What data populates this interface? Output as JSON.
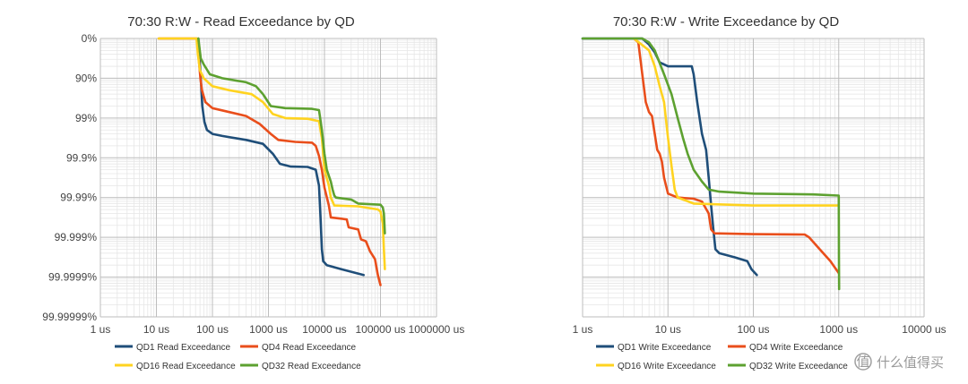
{
  "watermark": "什么值得买",
  "chart_data": [
    {
      "type": "line",
      "title": "70:30 R:W - Read Exceedance by QD",
      "xscale": "log",
      "yscale": "exceedance-log",
      "xlim": [
        1,
        1000000
      ],
      "ylim_nines": [
        0,
        7
      ],
      "x_tick_labels": [
        "1 us",
        "10 us",
        "100 us",
        "1000 us",
        "10000 us",
        "100000 us",
        "1000000 us"
      ],
      "y_tick_labels": [
        "0%",
        "90%",
        "99%",
        "99.9%",
        "99.99%",
        "99.999%",
        "99.9999%",
        "99.99999%"
      ],
      "grid": true,
      "legend_position": "bottom",
      "series": [
        {
          "name": "QD1 Read Exceedance",
          "color": "#1F4E79",
          "points": [
            [
              56,
              0
            ],
            [
              59,
              0.5
            ],
            [
              63,
              1.2
            ],
            [
              66,
              1.7
            ],
            [
              72,
              2.1
            ],
            [
              80,
              2.3
            ],
            [
              100,
              2.4
            ],
            [
              150,
              2.45
            ],
            [
              400,
              2.55
            ],
            [
              800,
              2.65
            ],
            [
              1200,
              2.9
            ],
            [
              1600,
              3.15
            ],
            [
              2500,
              3.22
            ],
            [
              5000,
              3.23
            ],
            [
              7000,
              3.3
            ],
            [
              8000,
              3.7
            ],
            [
              8500,
              4.5
            ],
            [
              9000,
              5.3
            ],
            [
              9500,
              5.6
            ],
            [
              11000,
              5.7
            ],
            [
              20000,
              5.8
            ],
            [
              50000,
              5.95
            ]
          ]
        },
        {
          "name": "QD4 Read Exceedance",
          "color": "#E94E1B",
          "points": [
            [
              11,
              0
            ],
            [
              12,
              0
            ],
            [
              53,
              0
            ],
            [
              57,
              0.5
            ],
            [
              61,
              1.0
            ],
            [
              65,
              1.3
            ],
            [
              75,
              1.6
            ],
            [
              100,
              1.75
            ],
            [
              200,
              1.85
            ],
            [
              400,
              1.95
            ],
            [
              700,
              2.15
            ],
            [
              1100,
              2.4
            ],
            [
              1500,
              2.55
            ],
            [
              3000,
              2.6
            ],
            [
              6000,
              2.62
            ],
            [
              7000,
              2.7
            ],
            [
              8000,
              2.95
            ],
            [
              9000,
              3.3
            ],
            [
              10000,
              3.75
            ],
            [
              12000,
              4.2
            ],
            [
              13000,
              4.5
            ],
            [
              20000,
              4.53
            ],
            [
              25000,
              4.55
            ],
            [
              27000,
              4.75
            ],
            [
              40000,
              4.8
            ],
            [
              45000,
              5.05
            ],
            [
              55000,
              5.1
            ],
            [
              65000,
              5.35
            ],
            [
              80000,
              5.55
            ],
            [
              90000,
              5.95
            ],
            [
              100000,
              6.2
            ]
          ]
        },
        {
          "name": "QD16 Read Exceedance",
          "color": "#FFD320",
          "points": [
            [
              11,
              0
            ],
            [
              52,
              0
            ],
            [
              55,
              0.4
            ],
            [
              60,
              0.8
            ],
            [
              70,
              1.0
            ],
            [
              100,
              1.2
            ],
            [
              200,
              1.3
            ],
            [
              500,
              1.4
            ],
            [
              800,
              1.6
            ],
            [
              1200,
              1.9
            ],
            [
              2000,
              2.0
            ],
            [
              5000,
              2.02
            ],
            [
              8000,
              2.08
            ],
            [
              9000,
              2.5
            ],
            [
              10000,
              3.3
            ],
            [
              12000,
              3.7
            ],
            [
              13000,
              4.0
            ],
            [
              15000,
              4.2
            ],
            [
              40000,
              4.22
            ],
            [
              90000,
              4.3
            ],
            [
              100000,
              4.35
            ],
            [
              110000,
              4.65
            ],
            [
              115000,
              5.3
            ],
            [
              120000,
              5.8
            ]
          ]
        },
        {
          "name": "QD32 Read Exceedance",
          "color": "#5DA130",
          "points": [
            [
              56,
              0
            ],
            [
              62,
              0.5
            ],
            [
              70,
              0.65
            ],
            [
              90,
              0.9
            ],
            [
              150,
              1.0
            ],
            [
              400,
              1.1
            ],
            [
              600,
              1.2
            ],
            [
              800,
              1.4
            ],
            [
              1100,
              1.7
            ],
            [
              2000,
              1.75
            ],
            [
              6000,
              1.77
            ],
            [
              8000,
              1.8
            ],
            [
              9000,
              2.3
            ],
            [
              10000,
              2.9
            ],
            [
              11000,
              3.3
            ],
            [
              13000,
              3.6
            ],
            [
              14000,
              3.8
            ],
            [
              15000,
              3.95
            ],
            [
              16000,
              4.0
            ],
            [
              30000,
              4.05
            ],
            [
              40000,
              4.15
            ],
            [
              100000,
              4.18
            ],
            [
              110000,
              4.25
            ],
            [
              115000,
              4.4
            ],
            [
              120000,
              4.9
            ]
          ]
        }
      ]
    },
    {
      "type": "line",
      "title": "70:30 R:W - Write Exceedance by QD",
      "xscale": "log",
      "yscale": "exceedance-log",
      "xlim": [
        1,
        10000
      ],
      "ylim_nines": [
        0,
        7
      ],
      "x_tick_labels": [
        "1 us",
        "10 us",
        "100 us",
        "1000 us",
        "10000 us"
      ],
      "y_tick_labels": [],
      "grid": true,
      "legend_position": "bottom",
      "series": [
        {
          "name": "QD1 Write Exceedance",
          "color": "#1F4E79",
          "points": [
            [
              1,
              0
            ],
            [
              5,
              0
            ],
            [
              6,
              0.15
            ],
            [
              7,
              0.35
            ],
            [
              8,
              0.6
            ],
            [
              10,
              0.7
            ],
            [
              19,
              0.7
            ],
            [
              20,
              0.9
            ],
            [
              22,
              1.6
            ],
            [
              25,
              2.4
            ],
            [
              28,
              2.8
            ],
            [
              30,
              3.5
            ],
            [
              32,
              4.2
            ],
            [
              34,
              4.8
            ],
            [
              36,
              5.3
            ],
            [
              40,
              5.4
            ],
            [
              60,
              5.5
            ],
            [
              85,
              5.6
            ],
            [
              95,
              5.8
            ],
            [
              110,
              5.95
            ]
          ]
        },
        {
          "name": "QD4 Write Exceedance",
          "color": "#E94E1B",
          "points": [
            [
              4,
              0
            ],
            [
              4.5,
              0.1
            ],
            [
              5,
              0.9
            ],
            [
              5.5,
              1.6
            ],
            [
              6,
              1.85
            ],
            [
              6.5,
              1.95
            ],
            [
              7,
              2.4
            ],
            [
              7.5,
              2.8
            ],
            [
              8,
              2.9
            ],
            [
              8.5,
              3.1
            ],
            [
              9,
              3.5
            ],
            [
              10,
              3.9
            ],
            [
              13,
              4.0
            ],
            [
              20,
              4.03
            ],
            [
              25,
              4.1
            ],
            [
              30,
              4.4
            ],
            [
              32,
              4.8
            ],
            [
              35,
              4.9
            ],
            [
              100,
              4.92
            ],
            [
              400,
              4.93
            ],
            [
              450,
              5.0
            ],
            [
              600,
              5.3
            ],
            [
              800,
              5.6
            ],
            [
              1000,
              5.9
            ]
          ]
        },
        {
          "name": "QD16 Write Exceedance",
          "color": "#FFD320",
          "points": [
            [
              4,
              0
            ],
            [
              6,
              0.3
            ],
            [
              7,
              0.7
            ],
            [
              8,
              1.2
            ],
            [
              9,
              1.6
            ],
            [
              10,
              2.5
            ],
            [
              11,
              3.2
            ],
            [
              12,
              3.8
            ],
            [
              13,
              4.0
            ],
            [
              15,
              4.05
            ],
            [
              20,
              4.15
            ],
            [
              100,
              4.2
            ],
            [
              500,
              4.2
            ],
            [
              1000,
              4.2
            ]
          ]
        },
        {
          "name": "QD32 Write Exceedance",
          "color": "#5DA130",
          "points": [
            [
              1,
              0
            ],
            [
              5,
              0
            ],
            [
              6,
              0.1
            ],
            [
              7,
              0.3
            ],
            [
              9,
              0.9
            ],
            [
              11,
              1.4
            ],
            [
              13,
              2.0
            ],
            [
              15,
              2.5
            ],
            [
              17,
              2.9
            ],
            [
              20,
              3.3
            ],
            [
              25,
              3.6
            ],
            [
              30,
              3.8
            ],
            [
              40,
              3.85
            ],
            [
              100,
              3.9
            ],
            [
              500,
              3.92
            ],
            [
              1000,
              3.95
            ],
            [
              1005,
              5.5
            ],
            [
              1010,
              6.3
            ]
          ]
        }
      ]
    }
  ]
}
